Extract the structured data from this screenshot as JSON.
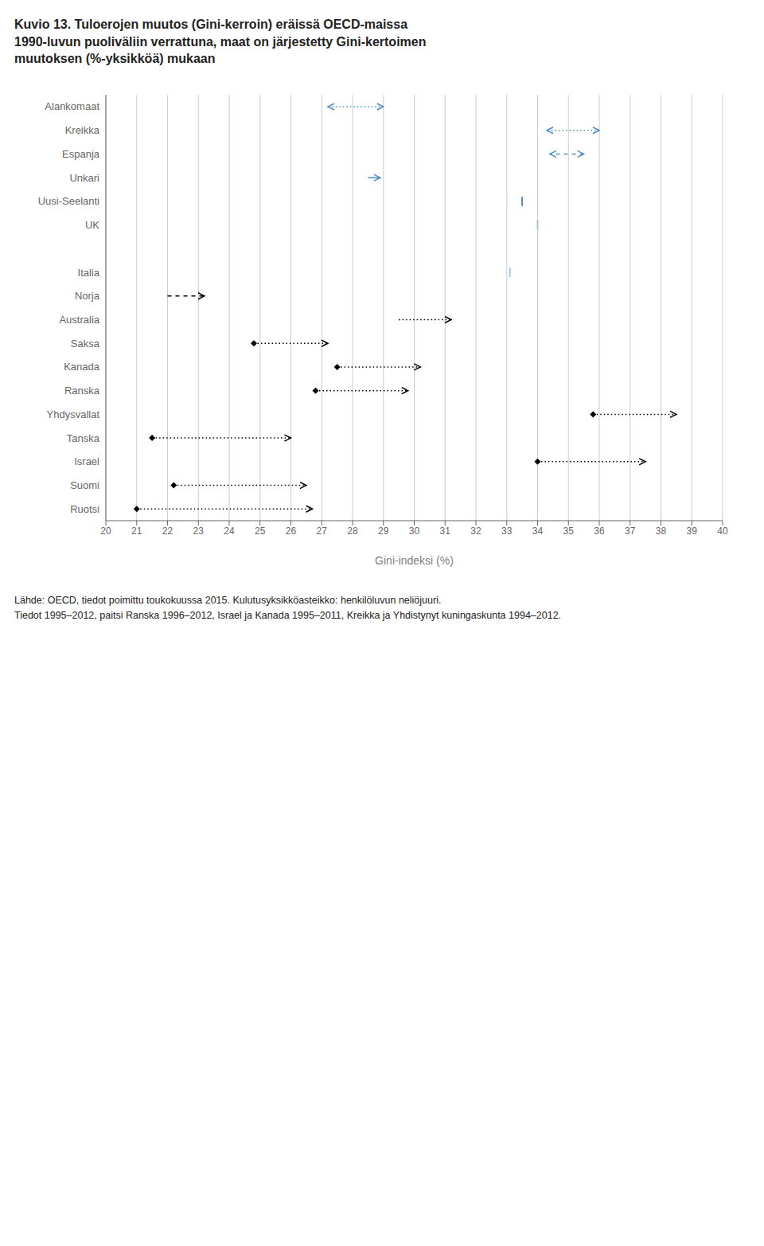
{
  "chart_data": {
    "type": "arrow",
    "orientation": "horizontal",
    "title": "Kuvio 13. Tuloerojen muutos (Gini-kerroin) eräissä OECD-maissa\n1990-luvun puoliväliin verrattuna, maat on järjestetty Gini-kertoimen\nmuutoksen (%-yksikköä) mukaan",
    "xlabel": "Gini-indeksi (%)",
    "xlim": [
      20,
      40
    ],
    "xticks": [
      20,
      21,
      22,
      23,
      24,
      25,
      26,
      27,
      28,
      29,
      30,
      31,
      32,
      33,
      34,
      35,
      36,
      37,
      38,
      39,
      40
    ],
    "grid": true,
    "annotations": [
      "Lähde: OECD, tiedot poimittu toukokuussa 2015. Kulutusyksikköasteikko: henkilöluvun neliöjuuri.",
      "Tiedot 1995–2012, paitsi Ranska 1996–2012, Israel ja Kanada 1995–2011, Kreikka ja Yhdistynyt kuningaskunta 1994–2012."
    ],
    "categories": [
      "Alankomaat",
      "Kreikka",
      "Espanja",
      "Unkari",
      "Uusi-Seelanti",
      "UK",
      null,
      "Italia",
      "Norja",
      "Australia",
      "Saksa",
      "Kanada",
      "Ranska",
      "Yhdysvallat",
      "Tanska",
      "Israel",
      "Suomi",
      "Ruotsi"
    ],
    "series": [
      {
        "color": "#4b8ec8",
        "line_style": "dashed",
        "marker": "double_arrow",
        "start": [
          29.0,
          36.0,
          35.5,
          null,
          null,
          null,
          null,
          null,
          null,
          null,
          null,
          null,
          null,
          null,
          null,
          null,
          null,
          null
        ],
        "end": [
          27.2,
          34.3,
          34.4,
          null,
          null,
          null,
          null,
          null,
          null,
          null,
          null,
          null,
          null,
          null,
          null,
          null,
          null,
          null
        ]
      },
      {
        "color": "#4b8ec8",
        "line_style": "solid",
        "marker": "arrow",
        "start": [
          null,
          null,
          null,
          28.5,
          33.5,
          null,
          null,
          null,
          null,
          null,
          null,
          null,
          null,
          null,
          null,
          null,
          null,
          null
        ],
        "end": [
          null,
          null,
          null,
          28.9,
          33.6,
          null,
          null,
          null,
          null,
          null,
          null,
          null,
          null,
          null,
          null,
          null,
          null,
          null
        ]
      },
      {
        "color": "#a0c8e0",
        "line_style": "solid",
        "marker": "arrow",
        "start": [
          null,
          null,
          null,
          null,
          null,
          34.0,
          null,
          33.1,
          null,
          null,
          null,
          null,
          null,
          null,
          null,
          null,
          null,
          null
        ],
        "end": [
          null,
          null,
          null,
          null,
          null,
          34.0,
          null,
          33.1,
          null,
          null,
          null,
          null,
          null,
          null,
          null,
          null,
          null,
          null
        ]
      },
      {
        "color": "#000000",
        "line_style": "dashed",
        "marker": "arrow",
        "start": [
          null,
          null,
          null,
          null,
          null,
          null,
          null,
          null,
          22.0,
          29.5,
          null,
          null,
          null,
          null,
          null,
          null,
          null,
          null
        ],
        "end": [
          null,
          null,
          null,
          null,
          null,
          null,
          null,
          null,
          23.2,
          31.2,
          null,
          null,
          null,
          null,
          null,
          null,
          null,
          null
        ]
      },
      {
        "color": "#000000",
        "line_style": "dashed",
        "marker": "diamond",
        "start": [
          null,
          null,
          null,
          null,
          null,
          null,
          null,
          null,
          null,
          null,
          24.8,
          27.5,
          26.8,
          35.8,
          21.5,
          34.0,
          22.2,
          21.0
        ],
        "end": [
          null,
          null,
          null,
          null,
          null,
          null,
          null,
          null,
          null,
          null,
          27.2,
          30.2,
          29.8,
          38.5,
          26.0,
          37.5,
          26.5,
          26.7
        ]
      }
    ]
  }
}
